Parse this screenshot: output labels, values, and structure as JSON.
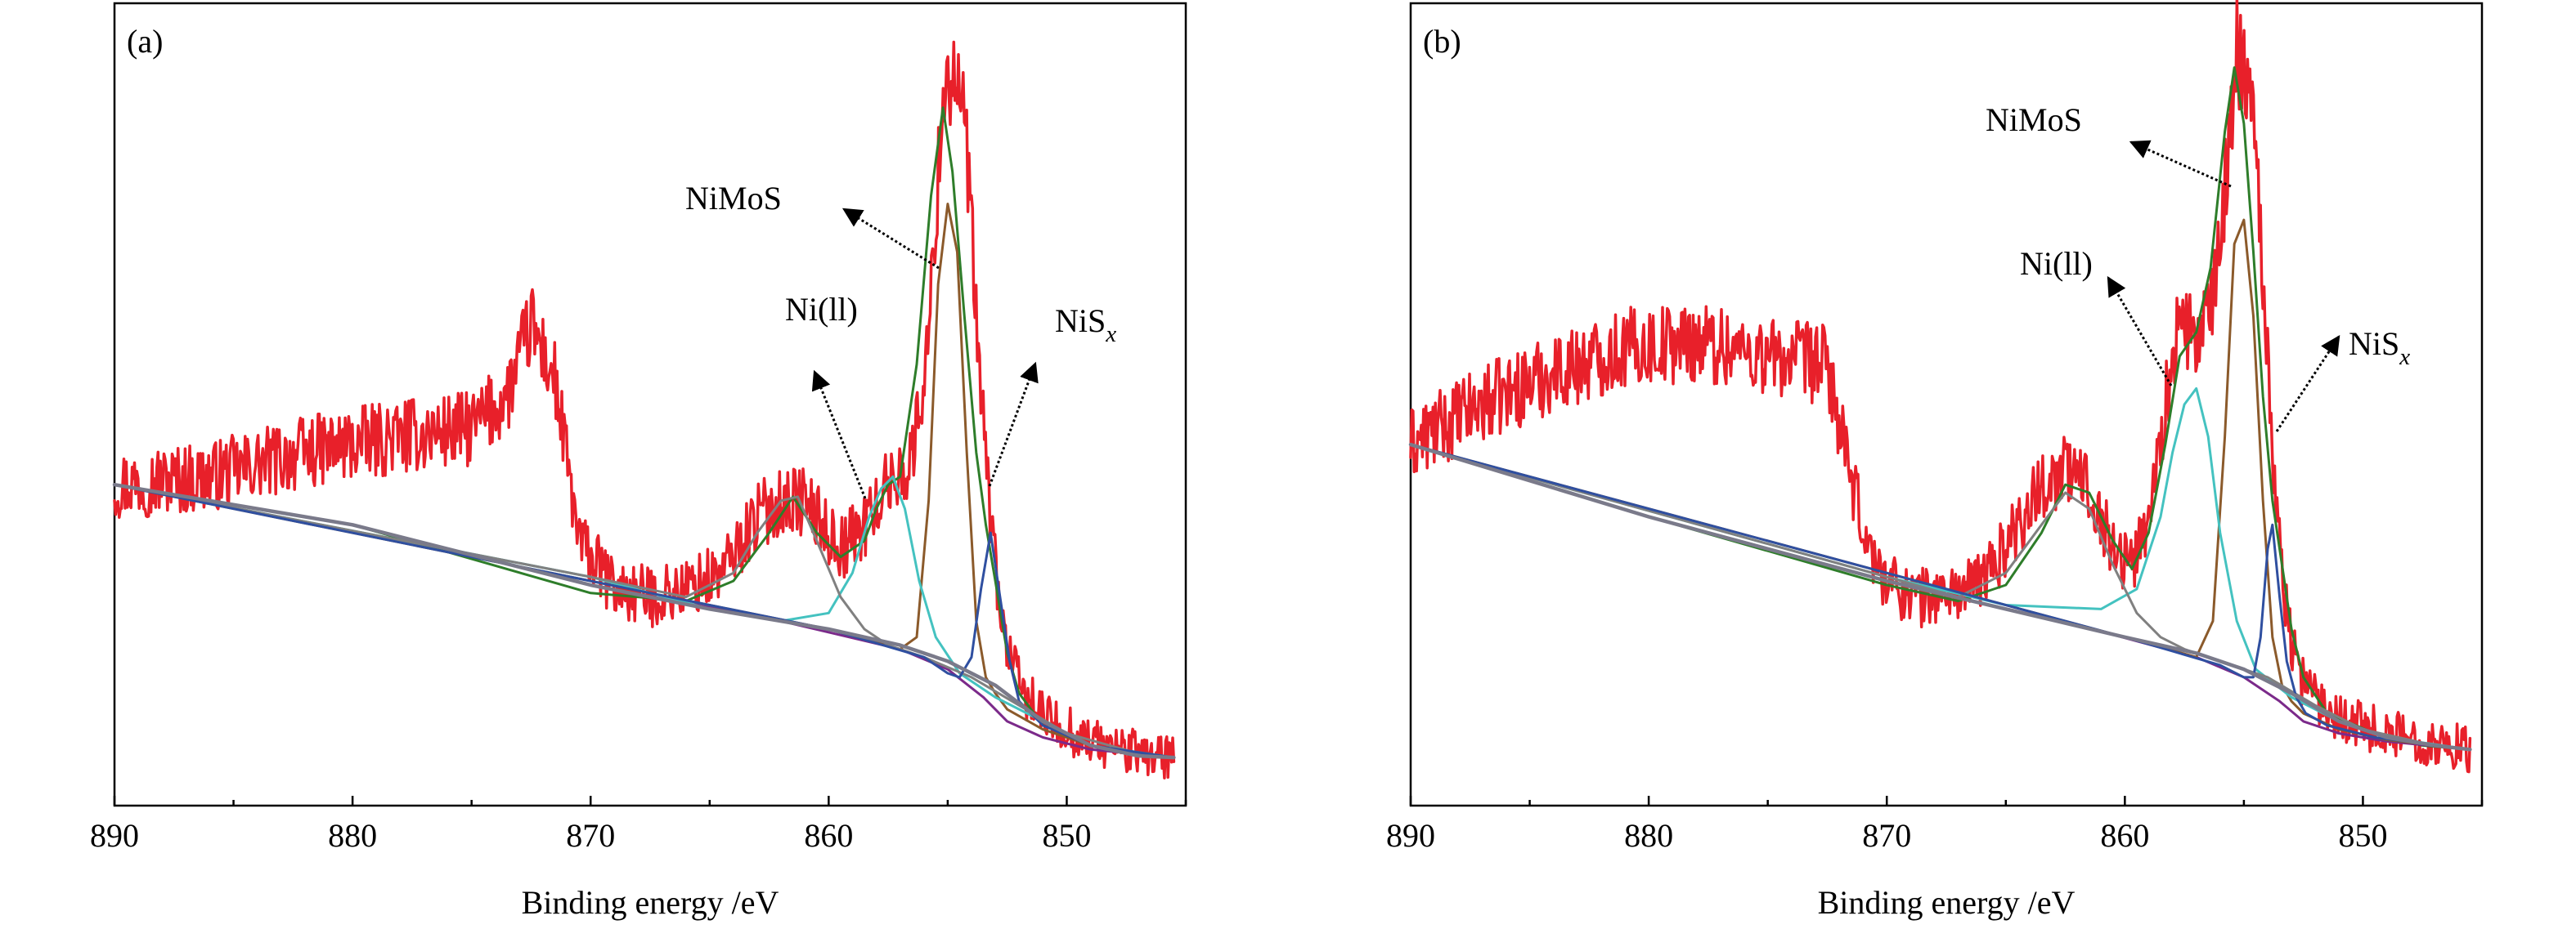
{
  "chart_data": [
    {
      "panel": "(a)",
      "type": "line",
      "xlabel": "Binding energy /eV",
      "ylabel": "",
      "xlim": [
        890,
        845
      ],
      "x_reversed": true,
      "xticks": [
        890,
        880,
        870,
        860,
        850
      ],
      "xticklabels": [
        "890",
        "880",
        "870",
        "860",
        "850"
      ],
      "y_ticks_shown": false,
      "grid": false,
      "series": [
        {
          "key": "raw",
          "color": "#e8202a",
          "kind": "noisy",
          "x": [
            890,
            886,
            882,
            878,
            875,
            873.5,
            872.5,
            871.5,
            870.5,
            869,
            867.5,
            866,
            864.5,
            863,
            862,
            861,
            859.5,
            858.5,
            857.5,
            856.5,
            855.8,
            855.2,
            854.7,
            854.2,
            853.7,
            853.2,
            852.7,
            852,
            851,
            849,
            847,
            845.5
          ],
          "y": [
            4.0,
            4.1,
            4.4,
            4.6,
            4.7,
            5.1,
            6.0,
            5.3,
            3.3,
            2.7,
            2.6,
            2.7,
            2.9,
            3.6,
            3.8,
            3.8,
            3.2,
            3.5,
            4.0,
            4.3,
            5.8,
            8.9,
            9.2,
            8.2,
            5.5,
            3.6,
            2.2,
            1.5,
            1.1,
            0.8,
            0.65,
            0.6
          ]
        },
        {
          "key": "envelope",
          "color": "#2e7d2a",
          "x": [
            890,
            880,
            870,
            866,
            864,
            862.5,
            861.5,
            860.5,
            859.5,
            858.5,
            858,
            857.5,
            857,
            856.3,
            855.7,
            855.2,
            854.8,
            854.3,
            853.8,
            853.4,
            853,
            852.5,
            852,
            851,
            849,
            847,
            845.5
          ],
          "y": [
            4.0,
            3.5,
            2.65,
            2.55,
            2.8,
            3.4,
            3.85,
            3.4,
            3.1,
            3.3,
            3.7,
            4.0,
            4.1,
            5.5,
            7.6,
            8.7,
            7.9,
            6.1,
            4.4,
            3.5,
            2.8,
            1.9,
            1.4,
            1.0,
            0.75,
            0.63,
            0.6
          ]
        },
        {
          "key": "baseline",
          "color": "#7a7a8a",
          "x": [
            890,
            880,
            870,
            865,
            860,
            857,
            855,
            853,
            851,
            849,
            847,
            845.5
          ],
          "y": [
            4.0,
            3.5,
            2.75,
            2.45,
            2.2,
            2.0,
            1.8,
            1.5,
            1.05,
            0.75,
            0.62,
            0.6
          ]
        },
        {
          "key": "nimos",
          "color": "#8b5a2b",
          "x": [
            890,
            860,
            857,
            856.3,
            855.8,
            855.4,
            855.0,
            854.6,
            854.2,
            853.8,
            853.4,
            853.0,
            852.5,
            851,
            849,
            845.5
          ],
          "y": [
            4.0,
            2.2,
            1.95,
            2.1,
            3.8,
            6.5,
            7.5,
            6.9,
            4.4,
            2.3,
            1.6,
            1.4,
            1.2,
            0.95,
            0.75,
            0.6
          ]
        },
        {
          "key": "ni2_sat",
          "color": "#44c2c0",
          "x": [
            890,
            870,
            865,
            862,
            860,
            859,
            858.3,
            857.8,
            857.3,
            856.8,
            856.2,
            855.5,
            854.5,
            853,
            851,
            849,
            845.5
          ],
          "y": [
            4.0,
            2.85,
            2.45,
            2.3,
            2.4,
            2.9,
            3.6,
            3.95,
            4.1,
            3.7,
            2.8,
            2.1,
            1.65,
            1.35,
            1.05,
            0.75,
            0.6
          ]
        },
        {
          "key": "ni2",
          "color": "#808080",
          "x": [
            890,
            870,
            866,
            864,
            863,
            862,
            861.3,
            860.5,
            859.5,
            858.5,
            857.5,
            856,
            854,
            852,
            850,
            847,
            845.5
          ],
          "y": [
            4.0,
            2.85,
            2.6,
            2.9,
            3.4,
            3.8,
            3.85,
            3.3,
            2.6,
            2.2,
            2.0,
            1.85,
            1.6,
            1.25,
            0.9,
            0.65,
            0.6
          ]
        },
        {
          "key": "nisx",
          "color": "#2f4fa0",
          "x": [
            890,
            860,
            856,
            855,
            854.5,
            854.0,
            853.6,
            853.2,
            852.8,
            852.4,
            852,
            851,
            849,
            845.5
          ],
          "y": [
            4.0,
            2.2,
            1.85,
            1.65,
            1.6,
            1.85,
            2.7,
            3.4,
            2.6,
            1.8,
            1.3,
            1.0,
            0.75,
            0.6
          ]
        },
        {
          "key": "bg",
          "color": "#7b2a8a",
          "x": [
            890,
            880,
            870,
            862,
            857,
            855,
            853.5,
            852.5,
            851,
            849,
            845.5
          ],
          "y": [
            4.0,
            3.5,
            2.75,
            2.3,
            1.95,
            1.7,
            1.35,
            1.05,
            0.85,
            0.7,
            0.6
          ]
        }
      ],
      "annotations": [
        {
          "text": "NiMoS",
          "sub": ""
        },
        {
          "text": "Ni(ll)",
          "sub": ""
        },
        {
          "text": "NiS",
          "sub": "x"
        }
      ]
    },
    {
      "panel": "(b)",
      "type": "line",
      "xlabel": "Binding energy /eV",
      "ylabel": "",
      "xlim": [
        890,
        845
      ],
      "x_reversed": true,
      "xticks": [
        890,
        880,
        870,
        860,
        850
      ],
      "xticklabels": [
        "890",
        "880",
        "870",
        "860",
        "850"
      ],
      "y_ticks_shown": false,
      "grid": false,
      "series": [
        {
          "key": "raw",
          "color": "#e8202a",
          "kind": "noisy",
          "x": [
            890,
            887,
            884,
            881,
            878,
            875,
            872.5,
            871.5,
            870.5,
            869.5,
            868.5,
            867.5,
            866.5,
            865.5,
            864.5,
            863.5,
            862.5,
            861.5,
            860.5,
            859.7,
            859,
            858.3,
            857.7,
            857,
            856.3,
            855.7,
            855.3,
            854.9,
            854.5,
            854.1,
            853.6,
            853.1,
            852.6,
            851.5,
            849.5,
            847.5,
            845.5
          ],
          "y": [
            4.5,
            5.0,
            5.4,
            5.7,
            5.8,
            5.6,
            5.5,
            4.0,
            3.0,
            2.7,
            2.6,
            2.65,
            2.7,
            3.0,
            3.5,
            4.0,
            4.2,
            4.0,
            3.2,
            3.0,
            3.6,
            5.0,
            6.0,
            5.8,
            6.2,
            8.0,
            9.4,
            9.2,
            8.5,
            6.0,
            3.5,
            2.2,
            1.6,
            1.2,
            0.95,
            0.8,
            0.7
          ]
        },
        {
          "key": "envelope",
          "color": "#2e7d2a",
          "x": [
            890,
            880,
            870,
            867,
            865,
            863.5,
            862.5,
            861.5,
            860.5,
            859.7,
            859,
            858.3,
            857.7,
            857,
            856.4,
            855.8,
            855.4,
            855.0,
            854.6,
            854.2,
            853.8,
            853.4,
            853,
            852.5,
            851.5,
            849.5,
            847.5,
            845.5
          ],
          "y": [
            4.5,
            3.6,
            2.75,
            2.55,
            2.75,
            3.4,
            4.0,
            3.9,
            3.3,
            2.95,
            3.4,
            4.5,
            5.6,
            5.9,
            6.7,
            8.4,
            9.2,
            8.5,
            6.9,
            5.1,
            3.8,
            3.0,
            2.2,
            1.6,
            1.15,
            0.9,
            0.75,
            0.7
          ]
        },
        {
          "key": "baseline",
          "color": "#7a7a8a",
          "x": [
            890,
            880,
            870,
            865,
            860,
            857,
            855,
            853,
            851,
            849,
            847,
            845.5
          ],
          "y": [
            4.5,
            3.6,
            2.8,
            2.45,
            2.1,
            1.9,
            1.7,
            1.4,
            1.05,
            0.85,
            0.75,
            0.7
          ]
        },
        {
          "key": "nimos",
          "color": "#8b5a2b",
          "x": [
            890,
            860,
            857,
            856.3,
            855.8,
            855.4,
            855.0,
            854.6,
            854.2,
            853.8,
            853.4,
            853.0,
            852.5,
            851,
            849,
            845.5
          ],
          "y": [
            4.5,
            2.1,
            1.85,
            2.3,
            4.6,
            7.0,
            7.3,
            6.1,
            3.8,
            2.1,
            1.5,
            1.3,
            1.15,
            0.95,
            0.82,
            0.7
          ]
        },
        {
          "key": "ni2_sat",
          "color": "#44c2c0",
          "x": [
            890,
            870,
            865,
            861,
            859.5,
            858.5,
            858,
            857.5,
            857,
            856.5,
            856,
            855.3,
            854.5,
            853,
            851,
            849,
            845.5
          ],
          "y": [
            4.5,
            2.85,
            2.5,
            2.45,
            2.7,
            3.6,
            4.4,
            5.0,
            5.2,
            4.6,
            3.4,
            2.3,
            1.7,
            1.35,
            1.05,
            0.85,
            0.7
          ]
        },
        {
          "key": "ni2",
          "color": "#808080",
          "x": [
            890,
            870,
            867,
            865,
            863.5,
            862.5,
            861.5,
            860.5,
            859.5,
            858.5,
            857.5,
            856,
            854,
            852,
            850,
            847,
            845.5
          ],
          "y": [
            4.5,
            2.85,
            2.6,
            2.9,
            3.5,
            3.9,
            3.7,
            3.0,
            2.4,
            2.1,
            1.95,
            1.8,
            1.6,
            1.25,
            0.95,
            0.75,
            0.7
          ]
        },
        {
          "key": "nisx",
          "color": "#2f4fa0",
          "x": [
            890,
            860,
            856,
            855,
            854.6,
            854.3,
            854.0,
            853.8,
            853.5,
            853.2,
            852.8,
            852.4,
            851.5,
            849.5,
            845.5
          ],
          "y": [
            4.5,
            2.1,
            1.75,
            1.6,
            1.6,
            2.1,
            3.2,
            3.5,
            2.6,
            1.8,
            1.35,
            1.15,
            1.0,
            0.85,
            0.7
          ]
        },
        {
          "key": "bg",
          "color": "#7b2a8a",
          "x": [
            890,
            880,
            870,
            862,
            857,
            855,
            853.5,
            852.5,
            851,
            849,
            845.5
          ],
          "y": [
            4.5,
            3.6,
            2.8,
            2.25,
            1.85,
            1.6,
            1.3,
            1.05,
            0.9,
            0.8,
            0.7
          ]
        }
      ],
      "annotations": [
        {
          "text": "NiMoS",
          "sub": ""
        },
        {
          "text": "Ni(ll)",
          "sub": ""
        },
        {
          "text": "NiS",
          "sub": "x"
        }
      ]
    }
  ]
}
